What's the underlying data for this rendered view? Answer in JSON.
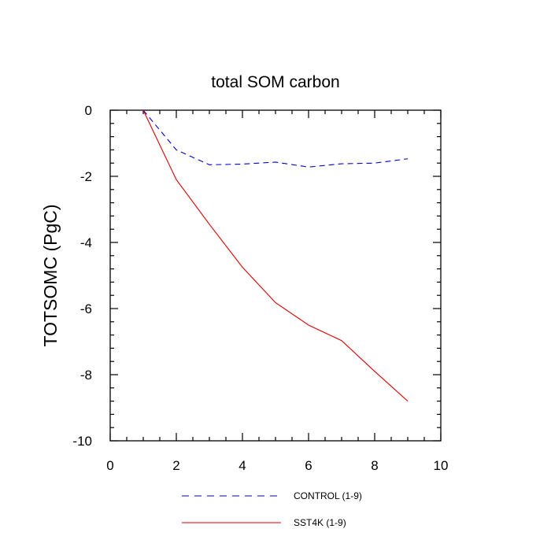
{
  "chart_data": {
    "type": "line",
    "title": "total SOM carbon",
    "xlabel": "",
    "ylabel": "TOTSOMC  (PgC)",
    "xlim": [
      0,
      10
    ],
    "ylim": [
      -10,
      0
    ],
    "xticks": [
      0,
      2,
      4,
      6,
      8,
      10
    ],
    "xtick_labels": [
      "0",
      "2",
      "4",
      "6",
      "8",
      "10"
    ],
    "yticks": [
      0,
      -2,
      -4,
      -6,
      -8,
      -10
    ],
    "ytick_labels": [
      "0",
      "-2",
      "-4",
      "-6",
      "-8",
      "-10"
    ],
    "x": [
      1,
      2,
      3,
      4,
      5,
      6,
      7,
      8,
      9
    ],
    "series": [
      {
        "name": "CONTROL (1-9)",
        "color": "#0000cc",
        "style": "dashed",
        "values": [
          0,
          -1.2,
          -1.65,
          -1.63,
          -1.57,
          -1.72,
          -1.62,
          -1.6,
          -1.47
        ]
      },
      {
        "name": "SST4K (1-9)",
        "color": "#dd0000",
        "style": "solid",
        "values": [
          0,
          -2.1,
          -3.45,
          -4.75,
          -5.82,
          -6.5,
          -6.97,
          -7.9,
          -8.8
        ]
      }
    ],
    "legend": [
      {
        "label": "CONTROL (1-9)",
        "color": "#0000cc",
        "style": "dashed"
      },
      {
        "label": "SST4K (1-9)",
        "color": "#dd0000",
        "style": "solid"
      }
    ],
    "legend_position": "bottom",
    "grid": false
  }
}
